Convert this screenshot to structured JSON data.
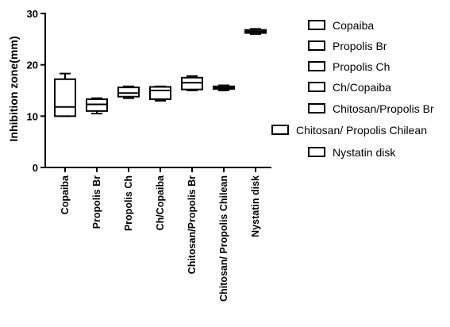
{
  "chart_data": {
    "type": "box",
    "ylabel": "Inhibition zone(mm)",
    "xlabel": "",
    "ylim": [
      0,
      30
    ],
    "yticks": [
      0,
      10,
      20,
      30
    ],
    "grid": false,
    "legend_position": "right",
    "categories": [
      "Copaiba",
      "Propolis Br",
      "Propolis Ch",
      "Ch/Copaiba",
      "Chitosan/Propolis Br",
      "Chitosan/ Propolis Chilean",
      "Nystatin disk"
    ],
    "series": [
      {
        "name": "Copaiba",
        "min": 10,
        "q1": 10,
        "median": 11.8,
        "q3": 17.2,
        "max": 18.3
      },
      {
        "name": "Propolis Br",
        "min": 10.5,
        "q1": 11,
        "median": 12.3,
        "q3": 13.3,
        "max": 13.5
      },
      {
        "name": "Propolis Ch",
        "min": 13.5,
        "q1": 13.8,
        "median": 14.5,
        "q3": 15.6,
        "max": 15.8
      },
      {
        "name": "Ch/Copaiba",
        "min": 13,
        "q1": 13.3,
        "median": 15,
        "q3": 15.7,
        "max": 15.8
      },
      {
        "name": "Chitosan/Propolis Br",
        "min": 15,
        "q1": 15.2,
        "median": 16.5,
        "q3": 17.5,
        "max": 17.8
      },
      {
        "name": "Chitosan/ Propolis Chilean",
        "min": 15,
        "q1": 15.3,
        "median": 15.5,
        "q3": 15.8,
        "max": 16
      },
      {
        "name": "Nystatin disk",
        "min": 26,
        "q1": 26.2,
        "median": 26.5,
        "q3": 26.8,
        "max": 27
      }
    ]
  }
}
